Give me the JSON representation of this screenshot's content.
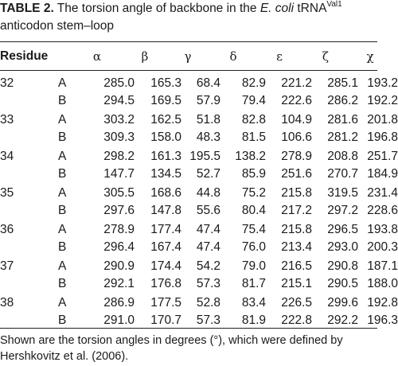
{
  "caption": {
    "label": "TABLE 2.",
    "text_part1": " The torsion angle of backbone in the ",
    "text_italic": "E. coli",
    "text_part2": " tRNA",
    "text_sup": "Val1",
    "line2": "anticodon stem–loop"
  },
  "table": {
    "header": {
      "residue": "Residue",
      "angles": [
        "α",
        "β",
        "γ",
        "δ",
        "ε",
        "ζ",
        "χ"
      ]
    },
    "groups": [
      {
        "residue": "32",
        "rows": [
          {
            "chain": "A",
            "values": [
              "285.0",
              "165.3",
              "68.4",
              "82.9",
              "221.2",
              "285.1",
              "193.2"
            ]
          },
          {
            "chain": "B",
            "values": [
              "294.5",
              "169.5",
              "57.9",
              "79.4",
              "222.6",
              "286.2",
              "192.2"
            ]
          }
        ]
      },
      {
        "residue": "33",
        "rows": [
          {
            "chain": "A",
            "values": [
              "303.2",
              "162.5",
              "51.8",
              "82.8",
              "104.9",
              "281.6",
              "201.8"
            ]
          },
          {
            "chain": "B",
            "values": [
              "309.3",
              "158.0",
              "48.3",
              "81.5",
              "106.6",
              "281.2",
              "196.8"
            ]
          }
        ]
      },
      {
        "residue": "34",
        "rows": [
          {
            "chain": "A",
            "values": [
              "298.2",
              "161.3",
              "195.5",
              "138.2",
              "278.9",
              "208.8",
              "251.7"
            ]
          },
          {
            "chain": "B",
            "values": [
              "147.7",
              "134.5",
              "52.7",
              "85.9",
              "251.6",
              "270.7",
              "184.9"
            ]
          }
        ]
      },
      {
        "residue": "35",
        "rows": [
          {
            "chain": "A",
            "values": [
              "305.5",
              "168.6",
              "44.8",
              "75.2",
              "215.8",
              "319.5",
              "231.4"
            ]
          },
          {
            "chain": "B",
            "values": [
              "297.6",
              "147.8",
              "55.6",
              "80.4",
              "217.2",
              "297.2",
              "228.6"
            ]
          }
        ]
      },
      {
        "residue": "36",
        "rows": [
          {
            "chain": "A",
            "values": [
              "278.9",
              "177.4",
              "47.4",
              "75.4",
              "215.8",
              "296.5",
              "193.8"
            ]
          },
          {
            "chain": "B",
            "values": [
              "296.4",
              "167.4",
              "47.4",
              "76.0",
              "213.4",
              "293.0",
              "200.3"
            ]
          }
        ]
      },
      {
        "residue": "37",
        "rows": [
          {
            "chain": "A",
            "values": [
              "290.9",
              "174.4",
              "54.2",
              "79.0",
              "216.5",
              "290.8",
              "187.1"
            ]
          },
          {
            "chain": "B",
            "values": [
              "292.1",
              "176.8",
              "57.3",
              "81.7",
              "215.1",
              "290.5",
              "188.0"
            ]
          }
        ]
      },
      {
        "residue": "38",
        "rows": [
          {
            "chain": "A",
            "values": [
              "286.9",
              "177.5",
              "52.8",
              "83.4",
              "226.5",
              "299.6",
              "192.8"
            ]
          },
          {
            "chain": "B",
            "values": [
              "291.0",
              "170.7",
              "57.3",
              "81.9",
              "222.8",
              "292.2",
              "196.3"
            ]
          }
        ]
      }
    ]
  },
  "footnote": {
    "line1": "Shown are the torsion angles in degrees (°), which were defined by",
    "line2": "Hershkovitz et al. (2006)."
  }
}
